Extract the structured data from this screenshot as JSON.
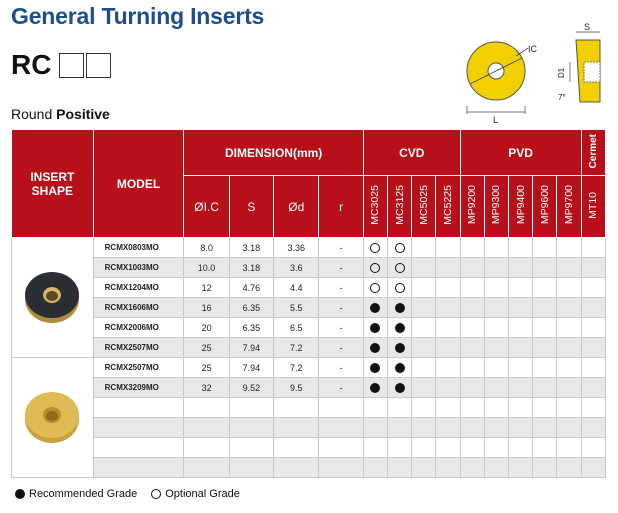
{
  "title": "General Turning Inserts",
  "code": "RC",
  "subtitle_prefix": "Round",
  "subtitle_bold": "Positive",
  "diagram": {
    "label_s": "S",
    "label_ic": "IC",
    "label_d1": "D1",
    "label_l": "L",
    "label_angle": "7°"
  },
  "headers": {
    "insert_shape": "INSERT SHAPE",
    "model": "MODEL",
    "dimension": "DIMENSION(mm)",
    "cvd": "CVD",
    "pvd": "PVD",
    "cermet": "Cermet",
    "dims": [
      "ØI.C",
      "S",
      "Ød",
      "r"
    ],
    "grades": [
      "MC3025",
      "MC3125",
      "MC5025",
      "MC5225",
      "MP9200",
      "MP9300",
      "MP9400",
      "MP9600",
      "MP9700",
      "MT10"
    ]
  },
  "rows": [
    {
      "model": "RCMX0803MO",
      "ic": "8.0",
      "s": "3.18",
      "d": "3.36",
      "r": "-",
      "grades": [
        "open",
        "open",
        "",
        "",
        "",
        "",
        "",
        "",
        "",
        ""
      ]
    },
    {
      "model": "RCMX1003MO",
      "ic": "10.0",
      "s": "3.18",
      "d": "3.6",
      "r": "-",
      "grades": [
        "open",
        "open",
        "",
        "",
        "",
        "",
        "",
        "",
        "",
        ""
      ]
    },
    {
      "model": "RCMX1204MO",
      "ic": "12",
      "s": "4.76",
      "d": "4.4",
      "r": "-",
      "grades": [
        "open",
        "open",
        "",
        "",
        "",
        "",
        "",
        "",
        "",
        ""
      ]
    },
    {
      "model": "RCMX1606MO",
      "ic": "16",
      "s": "6.35",
      "d": "5.5",
      "r": "-",
      "grades": [
        "filled",
        "filled",
        "",
        "",
        "",
        "",
        "",
        "",
        "",
        ""
      ]
    },
    {
      "model": "RCMX2006MO",
      "ic": "20",
      "s": "6.35",
      "d": "6.5",
      "r": "-",
      "grades": [
        "filled",
        "filled",
        "",
        "",
        "",
        "",
        "",
        "",
        "",
        ""
      ]
    },
    {
      "model": "RCMX2507MO",
      "ic": "25",
      "s": "7.94",
      "d": "7.2",
      "r": "-",
      "grades": [
        "filled",
        "filled",
        "",
        "",
        "",
        "",
        "",
        "",
        "",
        ""
      ]
    },
    {
      "model": "RCMX2507MO",
      "ic": "25",
      "s": "7.94",
      "d": "7.2",
      "r": "-",
      "grades": [
        "filled",
        "filled",
        "",
        "",
        "",
        "",
        "",
        "",
        "",
        ""
      ]
    },
    {
      "model": "RCMX3209MO",
      "ic": "32",
      "s": "9.52",
      "d": "9.5",
      "r": "-",
      "grades": [
        "filled",
        "filled",
        "",
        "",
        "",
        "",
        "",
        "",
        "",
        ""
      ]
    },
    {
      "model": "",
      "ic": "",
      "s": "",
      "d": "",
      "r": "",
      "grades": [
        "",
        "",
        "",
        "",
        "",
        "",
        "",
        "",
        "",
        ""
      ]
    },
    {
      "model": "",
      "ic": "",
      "s": "",
      "d": "",
      "r": "",
      "grades": [
        "",
        "",
        "",
        "",
        "",
        "",
        "",
        "",
        "",
        ""
      ]
    },
    {
      "model": "",
      "ic": "",
      "s": "",
      "d": "",
      "r": "",
      "grades": [
        "",
        "",
        "",
        "",
        "",
        "",
        "",
        "",
        "",
        ""
      ]
    },
    {
      "model": "",
      "ic": "",
      "s": "",
      "d": "",
      "r": "",
      "grades": [
        "",
        "",
        "",
        "",
        "",
        "",
        "",
        "",
        "",
        ""
      ]
    }
  ],
  "legend": {
    "recommended": "Recommended Grade",
    "optional": "Optional Grade"
  },
  "colors": {
    "header_red": "#b7101a",
    "title_blue": "#1e4e8c",
    "insert_yellow": "#f2d000"
  }
}
